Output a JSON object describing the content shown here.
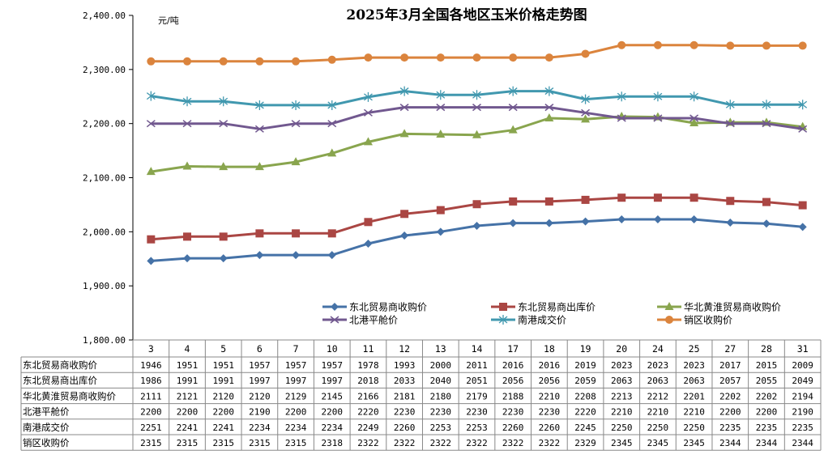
{
  "chart_data": {
    "type": "line",
    "title": "2025年3月全国各地区玉米价格走势图",
    "unit_label": "元/吨",
    "xlabel": "",
    "ylabel": "元/吨",
    "ylim": [
      1800,
      2400
    ],
    "yticks": [
      1800,
      1900,
      2000,
      2100,
      2200,
      2300,
      2400
    ],
    "ytick_labels": [
      "1,800.00",
      "1,900.00",
      "2,000.00",
      "2,100.00",
      "2,200.00",
      "2,300.00",
      "2,400.00"
    ],
    "grid": false,
    "legend_position": "bottom-right inside plot",
    "categories": [
      "3",
      "4",
      "5",
      "6",
      "7",
      "10",
      "11",
      "12",
      "13",
      "14",
      "17",
      "18",
      "19",
      "20",
      "24",
      "25",
      "27",
      "28",
      "31"
    ],
    "series": [
      {
        "name": "东北贸易商收购价",
        "color": "#4572A7",
        "marker": "diamond",
        "values": [
          1946,
          1951,
          1951,
          1957,
          1957,
          1957,
          1978,
          1993,
          2000,
          2011,
          2016,
          2016,
          2019,
          2023,
          2023,
          2023,
          2017,
          2015,
          2009
        ]
      },
      {
        "name": "东北贸易商出库价",
        "color": "#AA4643",
        "marker": "square",
        "values": [
          1986,
          1991,
          1991,
          1997,
          1997,
          1997,
          2018,
          2033,
          2040,
          2051,
          2056,
          2056,
          2059,
          2063,
          2063,
          2063,
          2057,
          2055,
          2049
        ]
      },
      {
        "name": "华北黄淮贸易商收购价",
        "color": "#89A54E",
        "marker": "triangle",
        "values": [
          2111,
          2121,
          2120,
          2120,
          2129,
          2145,
          2166,
          2181,
          2180,
          2179,
          2188,
          2210,
          2208,
          2213,
          2212,
          2201,
          2202,
          2202,
          2194
        ]
      },
      {
        "name": "北港平舱价",
        "color": "#71588F",
        "marker": "x",
        "values": [
          2200,
          2200,
          2200,
          2190,
          2200,
          2200,
          2220,
          2230,
          2230,
          2230,
          2230,
          2230,
          2220,
          2210,
          2210,
          2210,
          2200,
          2200,
          2190
        ]
      },
      {
        "name": "南港成交价",
        "color": "#4198AF",
        "marker": "star",
        "values": [
          2251,
          2241,
          2241,
          2234,
          2234,
          2234,
          2249,
          2260,
          2253,
          2253,
          2260,
          2260,
          2245,
          2250,
          2250,
          2250,
          2235,
          2235,
          2235
        ]
      },
      {
        "name": "销区收购价",
        "color": "#DB843D",
        "marker": "circle",
        "values": [
          2315,
          2315,
          2315,
          2315,
          2315,
          2318,
          2322,
          2322,
          2322,
          2322,
          2322,
          2322,
          2329,
          2345,
          2345,
          2345,
          2344,
          2344,
          2344
        ]
      }
    ],
    "data_table": true
  }
}
